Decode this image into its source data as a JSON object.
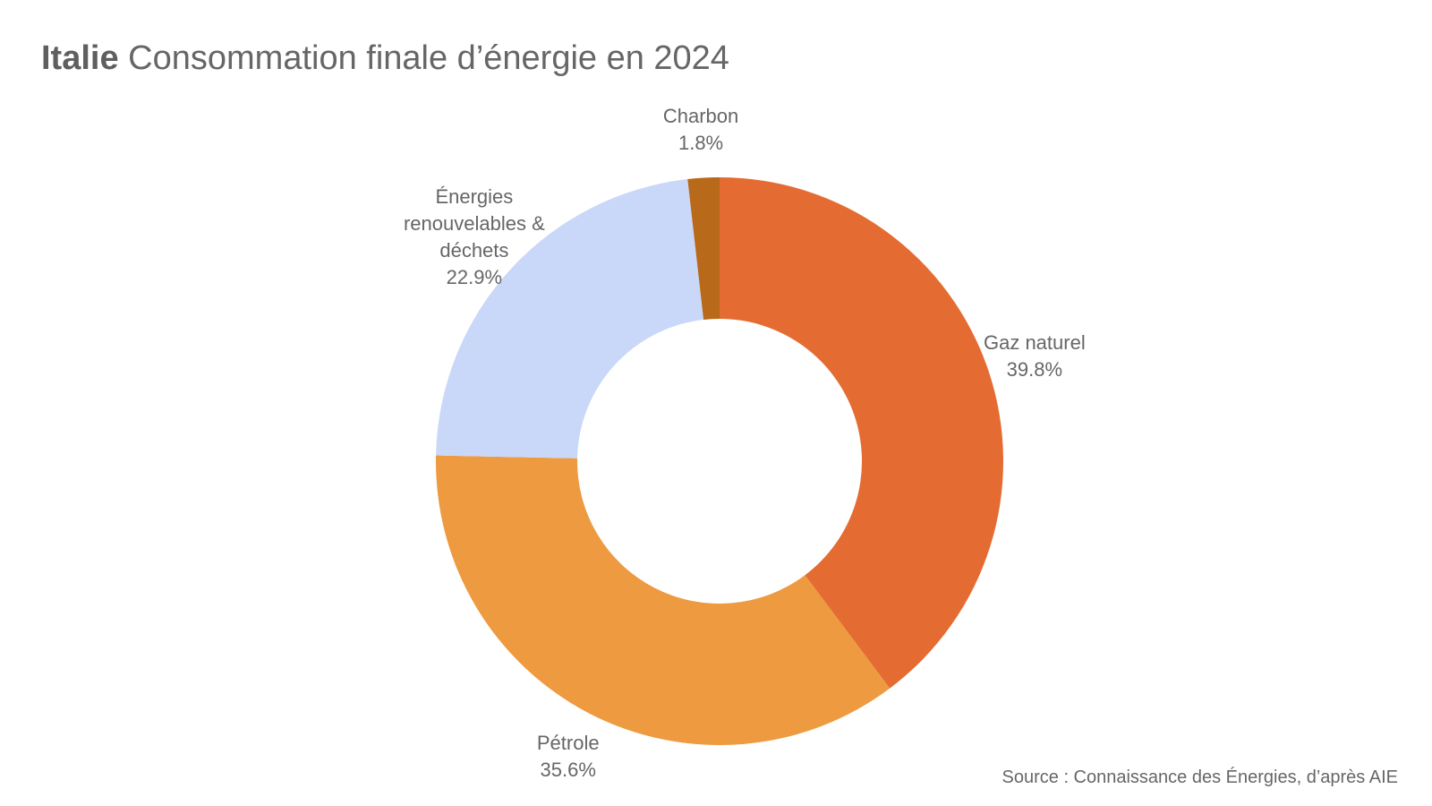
{
  "chart_data": {
    "type": "donut",
    "title_bold": "Italie",
    "title": "Consommation finale d’énergie en 2024",
    "categories": [
      "Gaz naturel",
      "Pétrole",
      "Énergies renouvelables & déchets",
      "Charbon"
    ],
    "values": [
      39.8,
      35.6,
      22.9,
      1.8
    ],
    "value_labels": [
      "39.8%",
      "35.6%",
      "22.9%",
      "1.8%"
    ],
    "colors": [
      "#e46c32",
      "#ed9a40",
      "#c9d8f8",
      "#b8691a"
    ],
    "source": "Source : Connaissance des Énergies, d’après AIE"
  }
}
